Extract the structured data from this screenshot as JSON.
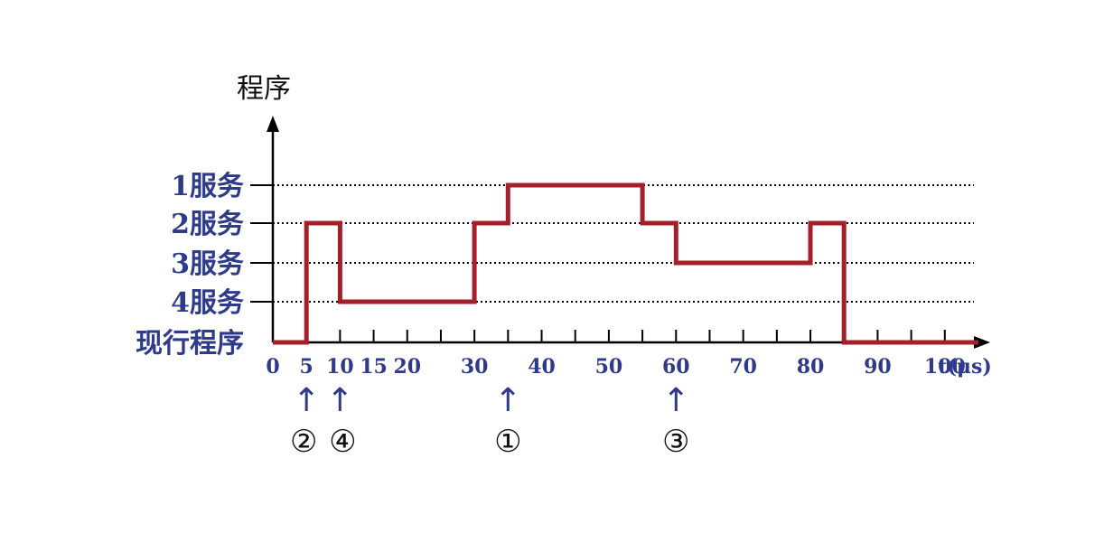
{
  "chart_data": {
    "type": "line",
    "step": true,
    "y_title": "程序",
    "y_levels": [
      "1服务",
      "2服务",
      "3服务",
      "4服务",
      "现行程序"
    ],
    "x_unit": "t(μs)",
    "x_ticks": [
      0,
      5,
      10,
      15,
      20,
      30,
      40,
      50,
      60,
      70,
      80,
      90,
      100
    ],
    "xlim": [
      0,
      105
    ],
    "grid": "dotted",
    "series": [
      {
        "color": "#a3202a",
        "x": [
          0,
          5,
          5,
          10,
          10,
          30,
          30,
          35,
          35,
          55,
          55,
          60,
          60,
          80,
          80,
          85,
          85,
          105
        ],
        "y": [
          "现行程序",
          "现行程序",
          "2服务",
          "2服务",
          "4服务",
          "4服务",
          "2服务",
          "2服务",
          "1服务",
          "1服务",
          "2服务",
          "2服务",
          "3服务",
          "3服务",
          "2服务",
          "2服务",
          "现行程序",
          "现行程序"
        ]
      }
    ],
    "annotations": [
      {
        "x": 5,
        "arrow": "↑",
        "label": "②"
      },
      {
        "x": 10,
        "arrow": "↑",
        "label": "④"
      },
      {
        "x": 35,
        "arrow": "↑",
        "label": "①"
      },
      {
        "x": 60,
        "arrow": "↑",
        "label": "③"
      }
    ]
  },
  "colors": {
    "axis": "#000000",
    "series": "#a3202a",
    "label_text": "#2e3a8c"
  }
}
